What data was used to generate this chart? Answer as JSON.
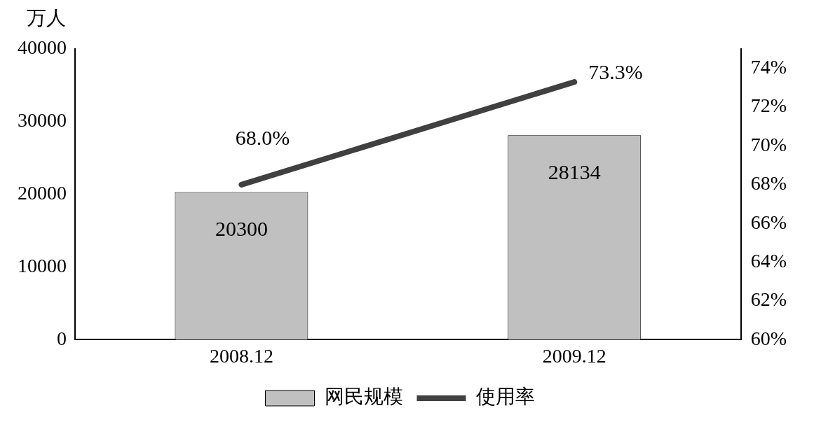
{
  "chart_data": {
    "type": "bar",
    "ylabel": "万人",
    "categories": [
      "2008.12",
      "2009.12"
    ],
    "series": [
      {
        "name": "网民规模",
        "color": "#c0c0c0",
        "values": [
          20300,
          28134
        ],
        "value_labels": [
          "20300",
          "28134"
        ]
      },
      {
        "name": "使用率",
        "type": "line",
        "axis": "y2",
        "color": "#404040",
        "values": [
          68.0,
          73.3
        ],
        "value_labels": [
          "68.0%",
          "73.3%"
        ],
        "marker": "none",
        "line_style": "solid"
      }
    ],
    "ylim": [
      0,
      40000
    ],
    "yticks": [
      0,
      10000,
      20000,
      30000,
      40000
    ],
    "y2lim": [
      60,
      75
    ],
    "y2ticks": [
      {
        "value": 60,
        "label": "60%"
      },
      {
        "value": 62,
        "label": "62%"
      },
      {
        "value": 64,
        "label": "64%"
      },
      {
        "value": 66,
        "label": "66%"
      },
      {
        "value": 68,
        "label": "68%"
      },
      {
        "value": 70,
        "label": "70%"
      },
      {
        "value": 72,
        "label": "72%"
      },
      {
        "value": 74,
        "label": "74%"
      }
    ],
    "grid": false,
    "legend": "bottom"
  }
}
